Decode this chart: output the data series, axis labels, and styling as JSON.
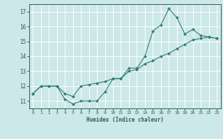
{
  "xlabel": "Humidex (Indice chaleur)",
  "bg_color": "#cce8e8",
  "grid_color": "#ffffff",
  "line_color": "#2e7d6e",
  "marker_color": "#2e7d6e",
  "line1_x": [
    0,
    1,
    2,
    3,
    4,
    5,
    6,
    7,
    8,
    9,
    10,
    11,
    12,
    13,
    14,
    15,
    16,
    17,
    18,
    19,
    20,
    21,
    22,
    23
  ],
  "line1_y": [
    11.5,
    12.0,
    12.0,
    12.0,
    11.1,
    10.8,
    11.0,
    11.0,
    11.0,
    11.6,
    12.5,
    12.5,
    13.2,
    13.2,
    14.0,
    15.7,
    16.1,
    17.2,
    16.6,
    15.5,
    15.8,
    15.4,
    15.3,
    15.2
  ],
  "line2_x": [
    0,
    1,
    2,
    3,
    4,
    5,
    6,
    7,
    8,
    9,
    10,
    11,
    12,
    13,
    14,
    15,
    16,
    17,
    18,
    19,
    20,
    21,
    22,
    23
  ],
  "line2_y": [
    11.5,
    12.0,
    12.0,
    12.0,
    11.5,
    11.3,
    12.0,
    12.1,
    12.2,
    12.3,
    12.5,
    12.5,
    13.0,
    13.1,
    13.5,
    13.7,
    14.0,
    14.2,
    14.5,
    14.8,
    15.1,
    15.2,
    15.3,
    15.2
  ],
  "ylim": [
    10.5,
    17.5
  ],
  "yticks": [
    11,
    12,
    13,
    14,
    15,
    16,
    17
  ],
  "xlim": [
    -0.5,
    23.5
  ],
  "xticks": [
    0,
    1,
    2,
    3,
    4,
    5,
    6,
    7,
    8,
    9,
    10,
    11,
    12,
    13,
    14,
    15,
    16,
    17,
    18,
    19,
    20,
    21,
    22,
    23
  ]
}
